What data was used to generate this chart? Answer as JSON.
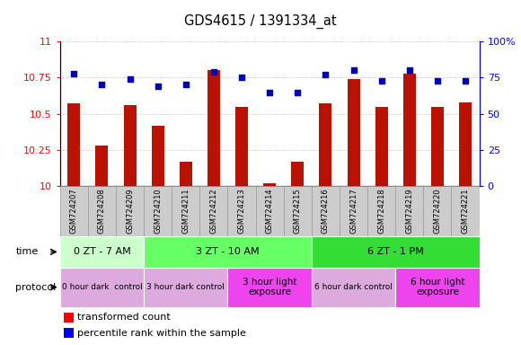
{
  "title": "GDS4615 / 1391334_at",
  "samples": [
    "GSM724207",
    "GSM724208",
    "GSM724209",
    "GSM724210",
    "GSM724211",
    "GSM724212",
    "GSM724213",
    "GSM724214",
    "GSM724215",
    "GSM724216",
    "GSM724217",
    "GSM724218",
    "GSM724219",
    "GSM724220",
    "GSM724221"
  ],
  "red_values": [
    10.57,
    10.28,
    10.56,
    10.42,
    10.17,
    10.8,
    10.55,
    10.02,
    10.17,
    10.57,
    10.74,
    10.55,
    10.78,
    10.55,
    10.58
  ],
  "blue_values": [
    78,
    70,
    74,
    69,
    70,
    79,
    75,
    65,
    65,
    77,
    80,
    73,
    80,
    73,
    73
  ],
  "ylim_left": [
    10.0,
    11.0
  ],
  "ylim_right": [
    0,
    100
  ],
  "yticks_left": [
    10.0,
    10.25,
    10.5,
    10.75,
    11.0
  ],
  "ytick_labels_left": [
    "10",
    "10.25",
    "10.5",
    "10.75",
    "11"
  ],
  "yticks_right": [
    0,
    25,
    50,
    75,
    100
  ],
  "ytick_labels_right": [
    "0",
    "25",
    "50",
    "75",
    "100%"
  ],
  "time_groups": [
    {
      "label": "0 ZT - 7 AM",
      "start": 0,
      "end": 3,
      "color": "#ccffcc"
    },
    {
      "label": "3 ZT - 10 AM",
      "start": 3,
      "end": 9,
      "color": "#66ff66"
    },
    {
      "label": "6 ZT - 1 PM",
      "start": 9,
      "end": 15,
      "color": "#33dd33"
    }
  ],
  "protocol_groups": [
    {
      "label": "0 hour dark  control",
      "start": 0,
      "end": 3,
      "color": "#ddaadd",
      "fontsize": 6.5
    },
    {
      "label": "3 hour dark control",
      "start": 3,
      "end": 6,
      "color": "#ddaadd",
      "fontsize": 6.5
    },
    {
      "label": "3 hour light\nexposure",
      "start": 6,
      "end": 9,
      "color": "#ee44ee",
      "fontsize": 7.5
    },
    {
      "label": "6 hour dark control",
      "start": 9,
      "end": 12,
      "color": "#ddaadd",
      "fontsize": 6.5
    },
    {
      "label": "6 hour light\nexposure",
      "start": 12,
      "end": 15,
      "color": "#ee44ee",
      "fontsize": 7.5
    }
  ],
  "bar_color": "#bb1100",
  "dot_color": "#0000bb",
  "dot_size": 20,
  "grid_color": "#000000",
  "grid_alpha": 0.3,
  "bar_bottom": 10.0,
  "bar_width": 0.45,
  "xlim": [
    -0.5,
    14.5
  ],
  "xtick_bg_color": "#cccccc",
  "xtick_bg_edge": "#999999",
  "time_label": "time",
  "protocol_label": "protocol",
  "legend_red_label": "transformed count",
  "legend_blue_label": "percentile rank within the sample"
}
